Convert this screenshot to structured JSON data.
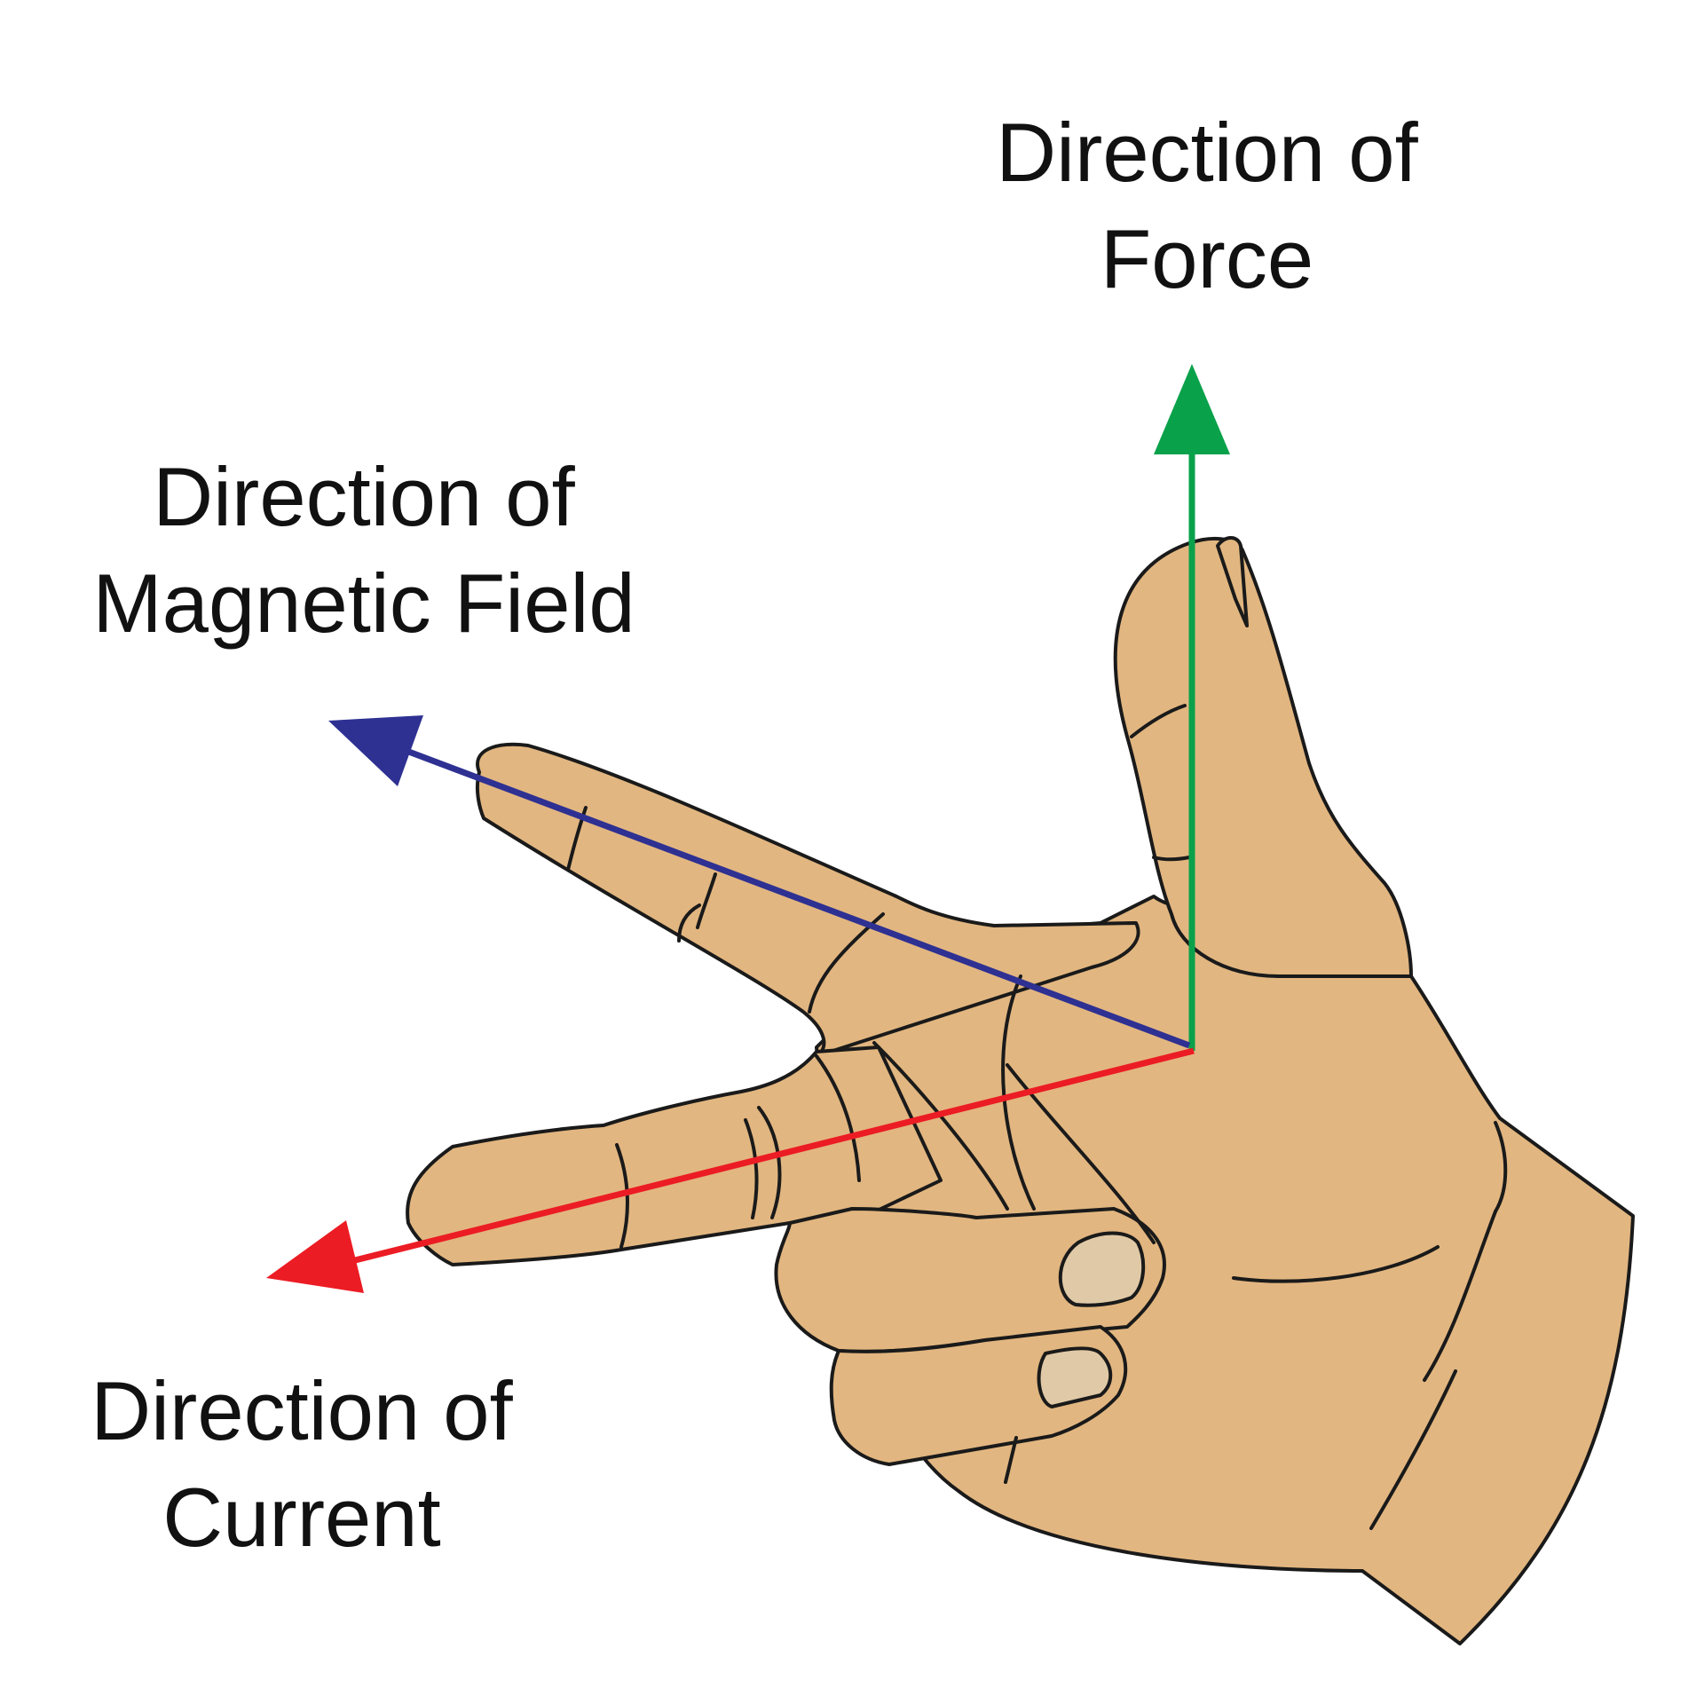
{
  "labels": {
    "force": {
      "line1": "Direction of",
      "line2": "Force"
    },
    "field": {
      "line1": "Direction of",
      "line2": "Magnetic Field"
    },
    "current": {
      "line1": "Direction of",
      "line2": "Current"
    }
  },
  "colors": {
    "skin": "#e2b680",
    "outline": "#1a1a1a",
    "nail": "#e0c9a6",
    "force_arrow": "#0aa14b",
    "field_arrow": "#2e3192",
    "current_arrow": "#ec1c24",
    "text": "#111111",
    "background": "#ffffff"
  },
  "icons": {
    "hand": "left-hand-icon",
    "force_arrow": "arrow-up-icon",
    "field_arrow": "arrow-up-left-icon",
    "current_arrow": "arrow-down-left-icon"
  }
}
